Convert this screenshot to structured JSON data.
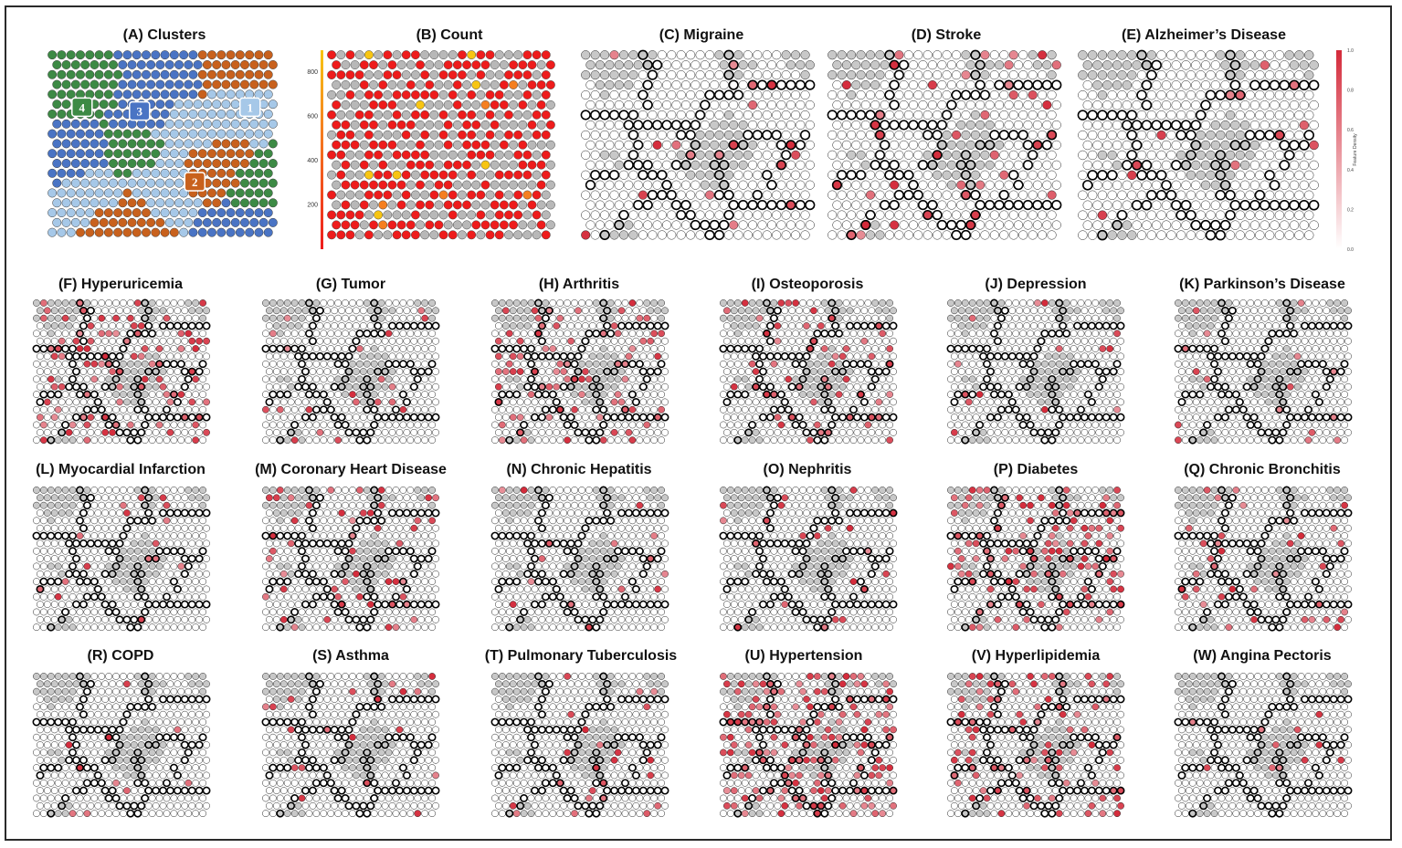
{
  "figure": {
    "grid_cols": 24,
    "grid_rows": 19,
    "colors": {
      "border": "#2a2a2a",
      "cluster_1": "#a6c8e8",
      "cluster_2": "#c8611d",
      "cluster_3": "#4a74c4",
      "cluster_4": "#3d8a45",
      "count_high": "#ee1c1c",
      "count_mid": "#f57f20",
      "count_low": "#f7c513",
      "node_empty": "#ffffff",
      "density_max": "#d42a3a",
      "boundary": "#000000"
    }
  },
  "chart_data": [
    {
      "id": "A",
      "type": "heatmap",
      "title": "(A) Clusters",
      "cluster_labels": [
        "1",
        "2",
        "3",
        "4"
      ]
    },
    {
      "id": "B",
      "type": "heatmap",
      "title": "(B) Count",
      "colorbar_ticks": [
        "200",
        "400",
        "600",
        "800"
      ]
    },
    {
      "id": "C",
      "type": "heatmap",
      "title": "(C) Migraine",
      "density": 0.05
    },
    {
      "id": "D",
      "type": "heatmap",
      "title": "(D) Stroke",
      "density": 0.07
    },
    {
      "id": "E",
      "type": "heatmap",
      "title": "(E) Alzheimer’s Disease",
      "density": 0.04,
      "colorbar_ticks": [
        "0.0",
        "0.2",
        "0.4",
        "0.6",
        "0.8",
        "1.0"
      ],
      "colorbar_label": "Feature Density"
    },
    {
      "id": "F",
      "type": "heatmap",
      "title": "(F) Hyperuricemia",
      "density": 0.22
    },
    {
      "id": "G",
      "type": "heatmap",
      "title": "(G) Tumor",
      "density": 0.07
    },
    {
      "id": "H",
      "type": "heatmap",
      "title": "(H) Arthritis",
      "density": 0.16
    },
    {
      "id": "I",
      "type": "heatmap",
      "title": "(I) Osteoporosis",
      "density": 0.14
    },
    {
      "id": "J",
      "type": "heatmap",
      "title": "(J) Depression",
      "density": 0.03
    },
    {
      "id": "K",
      "type": "heatmap",
      "title": "(K) Parkinson’s Disease",
      "density": 0.03
    },
    {
      "id": "L",
      "type": "heatmap",
      "title": "(L) Myocardial Infarction",
      "density": 0.04
    },
    {
      "id": "M",
      "type": "heatmap",
      "title": "(M) Coronary Heart Disease",
      "density": 0.12
    },
    {
      "id": "N",
      "type": "heatmap",
      "title": "(N) Chronic Hepatitis",
      "density": 0.04
    },
    {
      "id": "O",
      "type": "heatmap",
      "title": "(O) Nephritis",
      "density": 0.04
    },
    {
      "id": "P",
      "type": "heatmap",
      "title": "(P) Diabetes",
      "density": 0.22
    },
    {
      "id": "Q",
      "type": "heatmap",
      "title": "(Q) Chronic Bronchitis",
      "density": 0.09
    },
    {
      "id": "R",
      "type": "heatmap",
      "title": "(R) COPD",
      "density": 0.03
    },
    {
      "id": "S",
      "type": "heatmap",
      "title": "(S) Asthma",
      "density": 0.04
    },
    {
      "id": "T",
      "type": "heatmap",
      "title": "(T) Pulmonary Tuberculosis",
      "density": 0.04
    },
    {
      "id": "U",
      "type": "heatmap",
      "title": "(U) Hypertension",
      "density": 0.32
    },
    {
      "id": "V",
      "type": "heatmap",
      "title": "(V) Hyperlipidemia",
      "density": 0.2
    },
    {
      "id": "W",
      "type": "heatmap",
      "title": "(W) Angina Pectoris",
      "density": 0.04
    }
  ]
}
